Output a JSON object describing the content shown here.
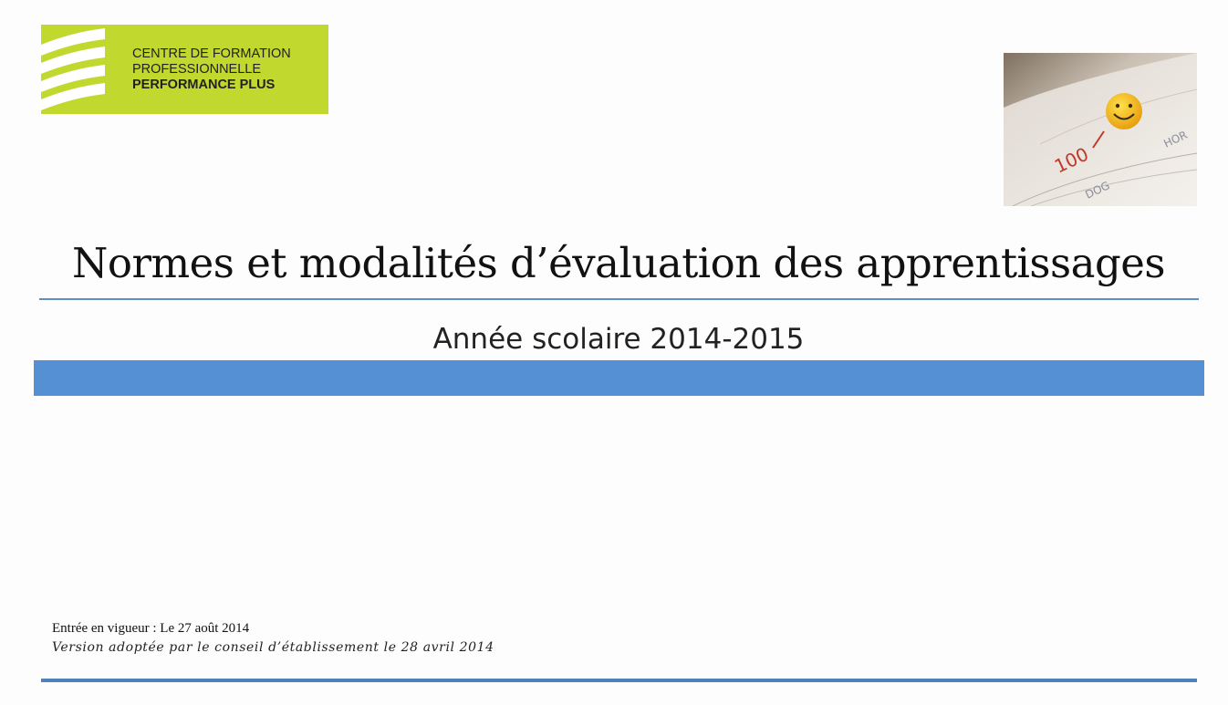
{
  "logo": {
    "line1": "CENTRE DE FORMATION",
    "line2": "PROFESSIONNELLE",
    "line3": "PERFORMANCE PLUS",
    "bg_color": "#c1d82f"
  },
  "photo": {
    "marks": [
      "100",
      "DOG",
      "HOR"
    ]
  },
  "document": {
    "title": "Normes et modalités d’évaluation des apprentissages",
    "subtitle": "Année scolaire 2014-2015"
  },
  "footer": {
    "effective_date": "Entrée en vigueur : Le 27 août 2014",
    "version": "Version adoptée par le conseil d’établissement le 28 avril 2014"
  },
  "colors": {
    "accent_blue": "#5590d5",
    "rule_blue": "#4f81bd"
  }
}
